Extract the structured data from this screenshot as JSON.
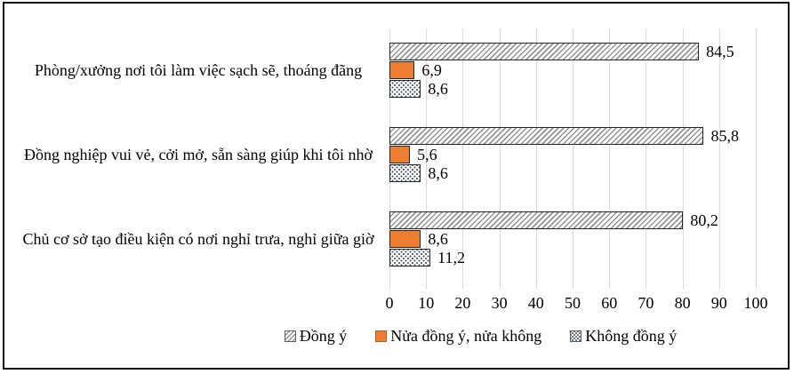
{
  "chart_data": {
    "type": "bar",
    "orientation": "horizontal",
    "title": "",
    "categories": [
      "Phòng/xưởng nơi tôi làm việc sạch sẽ, thoáng đãng",
      "Đồng nghiệp vui vẻ, cởi mở, sẵn sàng giúp khi tôi nhờ",
      "Chủ cơ sở tạo điều kiện có nơi nghỉ trưa, nghỉ giữa giờ"
    ],
    "series": [
      {
        "name": "Đồng ý",
        "style": "hatch",
        "values": [
          84.5,
          85.8,
          80.2
        ],
        "labels": [
          "84,5",
          "85,8",
          "80,2"
        ]
      },
      {
        "name": "Nửa đồng ý, nửa không",
        "style": "solid",
        "values": [
          6.9,
          5.6,
          8.6
        ],
        "labels": [
          "6,9",
          "5,6",
          "8,6"
        ]
      },
      {
        "name": "Không đồng ý",
        "style": "dots",
        "values": [
          8.6,
          8.6,
          11.2
        ],
        "labels": [
          "8,6",
          "8,6",
          "11,2"
        ]
      }
    ],
    "xlim": [
      0,
      100
    ],
    "xticks": [
      0,
      10,
      20,
      30,
      40,
      50,
      60,
      70,
      80,
      90,
      100
    ],
    "grid": true,
    "legend_position": "bottom",
    "colors": {
      "solid_series": "#ED7D31",
      "hatch_line": "#949494",
      "dot_fill": "#44546A",
      "gridline": "#D9D9D9",
      "bar_border": "#262626",
      "text": "#000000",
      "frame_border": "#111111"
    }
  }
}
